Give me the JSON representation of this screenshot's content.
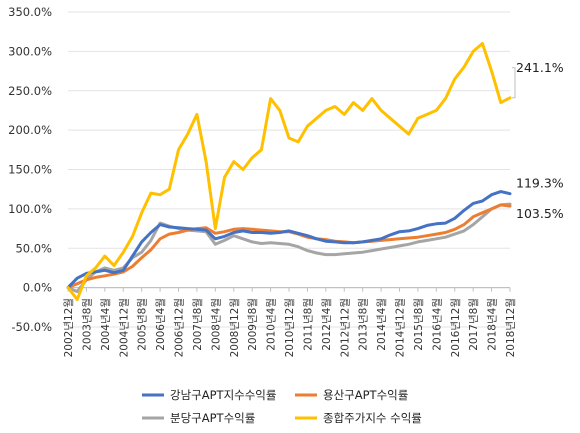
{
  "chart_data": {
    "type": "line",
    "title": "",
    "xlabel": "",
    "ylabel": "",
    "ylim": [
      -50,
      350
    ],
    "y_ticks": [
      -50,
      0,
      50,
      100,
      150,
      200,
      250,
      300,
      350
    ],
    "y_tick_labels": [
      "-50.0%",
      "0.0%",
      "50.0%",
      "100.0%",
      "150.0%",
      "200.0%",
      "250.0%",
      "300.0%",
      "350.0%"
    ],
    "x_tick_labels": [
      "2002년12월",
      "2003년8월",
      "2004년4월",
      "2004년12월",
      "2005년8월",
      "2006년4월",
      "2006년12월",
      "2007년8월",
      "2008년4월",
      "2008년12월",
      "2009년8월",
      "2010년4월",
      "2010년12월",
      "2011년8월",
      "2012년4월",
      "2012년12월",
      "2013년8월",
      "2014년4월",
      "2014년12월",
      "2015년8월",
      "2016년4월",
      "2016년12월",
      "2017년8월",
      "2018년4월",
      "2018년12월"
    ],
    "grid": true,
    "legend_position": "bottom",
    "series": [
      {
        "name": "강남구APT지수수익률",
        "color": "#4472c4",
        "end_label": "119.3%",
        "points": [
          [
            0,
            0
          ],
          [
            1,
            12
          ],
          [
            2,
            18
          ],
          [
            3,
            20
          ],
          [
            4,
            22
          ],
          [
            5,
            19
          ],
          [
            6,
            22
          ],
          [
            7,
            40
          ],
          [
            8,
            58
          ],
          [
            9,
            70
          ],
          [
            10,
            80
          ],
          [
            11,
            77
          ],
          [
            12,
            76
          ],
          [
            13,
            75
          ],
          [
            14,
            74
          ],
          [
            15,
            73
          ],
          [
            16,
            62
          ],
          [
            17,
            65
          ],
          [
            18,
            70
          ],
          [
            19,
            72
          ],
          [
            20,
            70
          ],
          [
            21,
            70
          ],
          [
            22,
            69
          ],
          [
            23,
            70
          ],
          [
            24,
            72
          ],
          [
            25,
            69
          ],
          [
            26,
            66
          ],
          [
            27,
            62
          ],
          [
            28,
            59
          ],
          [
            29,
            58
          ],
          [
            30,
            57
          ],
          [
            31,
            57
          ],
          [
            32,
            58
          ],
          [
            33,
            60
          ],
          [
            34,
            62
          ],
          [
            35,
            67
          ],
          [
            36,
            71
          ],
          [
            37,
            72
          ],
          [
            38,
            75
          ],
          [
            39,
            79
          ],
          [
            40,
            81
          ],
          [
            41,
            82
          ],
          [
            42,
            88
          ],
          [
            43,
            98
          ],
          [
            44,
            107
          ],
          [
            45,
            110
          ],
          [
            46,
            118
          ],
          [
            47,
            122
          ],
          [
            48,
            119.3
          ]
        ]
      },
      {
        "name": "용산구APT수익률",
        "color": "#ed7d31",
        "end_label": "103.5%",
        "points": [
          [
            0,
            0
          ],
          [
            1,
            5
          ],
          [
            2,
            10
          ],
          [
            3,
            13
          ],
          [
            4,
            15
          ],
          [
            5,
            17
          ],
          [
            6,
            20
          ],
          [
            7,
            27
          ],
          [
            8,
            38
          ],
          [
            9,
            48
          ],
          [
            10,
            62
          ],
          [
            11,
            68
          ],
          [
            12,
            70
          ],
          [
            13,
            73
          ],
          [
            14,
            75
          ],
          [
            15,
            76
          ],
          [
            16,
            69
          ],
          [
            17,
            71
          ],
          [
            18,
            74
          ],
          [
            19,
            75
          ],
          [
            20,
            74
          ],
          [
            21,
            73
          ],
          [
            22,
            72
          ],
          [
            23,
            71
          ],
          [
            24,
            71
          ],
          [
            25,
            68
          ],
          [
            26,
            64
          ],
          [
            27,
            62
          ],
          [
            28,
            61
          ],
          [
            29,
            59
          ],
          [
            30,
            58
          ],
          [
            31,
            57
          ],
          [
            32,
            58
          ],
          [
            33,
            59
          ],
          [
            34,
            60
          ],
          [
            35,
            61
          ],
          [
            36,
            62
          ],
          [
            37,
            63
          ],
          [
            38,
            64
          ],
          [
            39,
            66
          ],
          [
            40,
            68
          ],
          [
            41,
            70
          ],
          [
            42,
            74
          ],
          [
            43,
            80
          ],
          [
            44,
            90
          ],
          [
            45,
            95
          ],
          [
            46,
            100
          ],
          [
            47,
            105
          ],
          [
            48,
            103.5
          ]
        ]
      },
      {
        "name": "분당구APT수익률",
        "color": "#a5a5a5",
        "end_label": "",
        "points": [
          [
            0,
            0
          ],
          [
            1,
            -5
          ],
          [
            2,
            10
          ],
          [
            3,
            20
          ],
          [
            4,
            25
          ],
          [
            5,
            22
          ],
          [
            6,
            25
          ],
          [
            7,
            38
          ],
          [
            8,
            45
          ],
          [
            9,
            60
          ],
          [
            10,
            82
          ],
          [
            11,
            78
          ],
          [
            12,
            75
          ],
          [
            13,
            73
          ],
          [
            14,
            72
          ],
          [
            15,
            71
          ],
          [
            16,
            55
          ],
          [
            17,
            60
          ],
          [
            18,
            66
          ],
          [
            19,
            62
          ],
          [
            20,
            58
          ],
          [
            21,
            56
          ],
          [
            22,
            57
          ],
          [
            23,
            56
          ],
          [
            24,
            55
          ],
          [
            25,
            52
          ],
          [
            26,
            47
          ],
          [
            27,
            44
          ],
          [
            28,
            42
          ],
          [
            29,
            42
          ],
          [
            30,
            43
          ],
          [
            31,
            44
          ],
          [
            32,
            45
          ],
          [
            33,
            47
          ],
          [
            34,
            49
          ],
          [
            35,
            51
          ],
          [
            36,
            53
          ],
          [
            37,
            55
          ],
          [
            38,
            58
          ],
          [
            39,
            60
          ],
          [
            40,
            62
          ],
          [
            41,
            64
          ],
          [
            42,
            68
          ],
          [
            43,
            72
          ],
          [
            44,
            80
          ],
          [
            45,
            90
          ],
          [
            46,
            100
          ],
          [
            47,
            105
          ],
          [
            48,
            106
          ]
        ]
      },
      {
        "name": "종합주가지수 수익률",
        "color": "#ffc000",
        "end_label": "241.1%",
        "points": [
          [
            0,
            0
          ],
          [
            1,
            -15
          ],
          [
            2,
            15
          ],
          [
            3,
            25
          ],
          [
            4,
            40
          ],
          [
            5,
            28
          ],
          [
            6,
            45
          ],
          [
            7,
            65
          ],
          [
            8,
            95
          ],
          [
            9,
            120
          ],
          [
            10,
            118
          ],
          [
            11,
            125
          ],
          [
            12,
            175
          ],
          [
            13,
            195
          ],
          [
            14,
            220
          ],
          [
            15,
            160
          ],
          [
            16,
            75
          ],
          [
            17,
            140
          ],
          [
            18,
            160
          ],
          [
            19,
            150
          ],
          [
            20,
            165
          ],
          [
            21,
            175
          ],
          [
            22,
            240
          ],
          [
            23,
            225
          ],
          [
            24,
            190
          ],
          [
            25,
            185
          ],
          [
            26,
            205
          ],
          [
            27,
            215
          ],
          [
            28,
            225
          ],
          [
            29,
            230
          ],
          [
            30,
            220
          ],
          [
            31,
            235
          ],
          [
            32,
            225
          ],
          [
            33,
            240
          ],
          [
            34,
            225
          ],
          [
            35,
            215
          ],
          [
            36,
            205
          ],
          [
            37,
            195
          ],
          [
            38,
            215
          ],
          [
            39,
            220
          ],
          [
            40,
            225
          ],
          [
            41,
            240
          ],
          [
            42,
            265
          ],
          [
            43,
            280
          ],
          [
            44,
            300
          ],
          [
            45,
            310
          ],
          [
            46,
            275
          ],
          [
            47,
            235
          ],
          [
            48,
            241.1
          ]
        ]
      }
    ]
  }
}
